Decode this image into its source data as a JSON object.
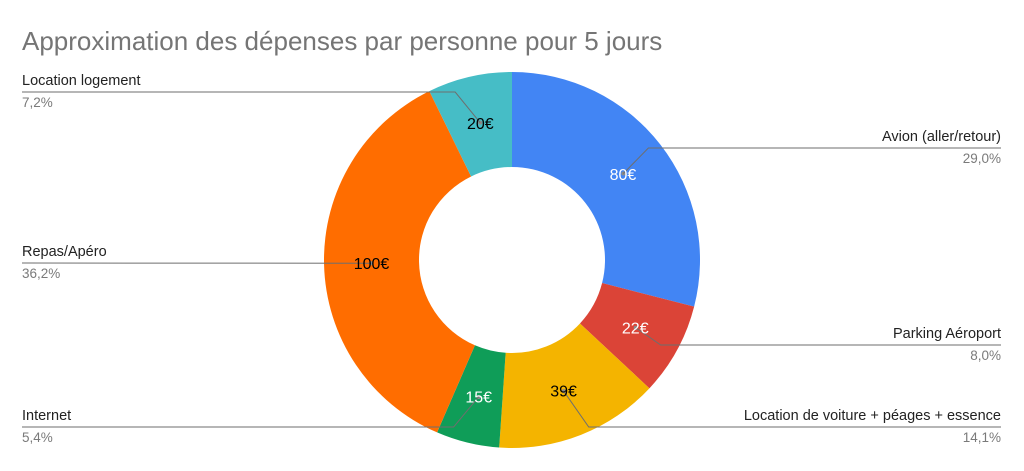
{
  "chart_data": {
    "type": "pie",
    "title": "Approximation des dépenses par personne pour 5 jours",
    "donut": true,
    "slices": [
      {
        "label": "Avion (aller/retour)",
        "value": 80,
        "value_label": "80€",
        "percent_label": "29,0%",
        "color": "#4285f4",
        "value_text_color": "#ffffff"
      },
      {
        "label": "Parking Aéroport",
        "value": 22,
        "value_label": "22€",
        "percent_label": "8,0%",
        "color": "#db4437",
        "value_text_color": "#ffffff"
      },
      {
        "label": "Location de voiture + péages + essence",
        "value": 39,
        "value_label": "39€",
        "percent_label": "14,1%",
        "color": "#f4b400",
        "value_text_color": "#000000"
      },
      {
        "label": "Internet",
        "value": 15,
        "value_label": "15€",
        "percent_label": "5,4%",
        "color": "#0f9d58",
        "value_text_color": "#ffffff"
      },
      {
        "label": "Repas/Apéro",
        "value": 100,
        "value_label": "100€",
        "percent_label": "36,2%",
        "color": "#ff6d00",
        "value_text_color": "#000000"
      },
      {
        "label": "Location logement",
        "value": 20,
        "value_label": "20€",
        "percent_label": "7,2%",
        "color": "#46bdc6",
        "value_text_color": "#000000"
      }
    ]
  }
}
